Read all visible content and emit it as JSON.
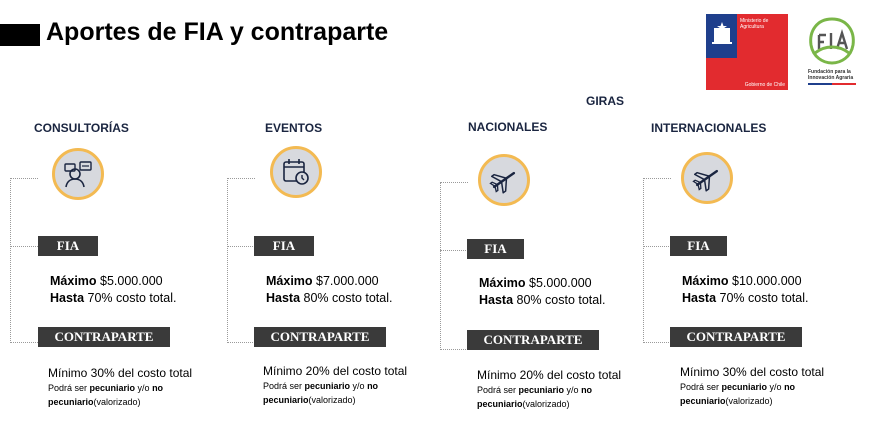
{
  "header": {
    "title": "Aportes de FIA y contraparte"
  },
  "logos": {
    "gobierno": {
      "ministry": "Ministerio de Agricultura",
      "government": "Gobierno de Chile"
    },
    "fia": {
      "name": "Fundación para la Innovación Agraria"
    }
  },
  "giras_label": "GIRAS",
  "common": {
    "fia_label": "FIA",
    "contraparte_label": "CONTRAPARTE",
    "maximo_word": "Máximo",
    "hasta_word": "Hasta",
    "note_prefix": "Podrá ser ",
    "note_pecuniario": "pecuniario",
    "note_middle": " y/o ",
    "note_no": "no",
    "note_pecuniario2": "pecuniario",
    "note_suffix": "(valorizado)"
  },
  "columns": [
    {
      "heading": "CONSULTORÍAS",
      "icon": "consultant-icon",
      "maximo": "$5.000.000",
      "hasta": "70% costo total.",
      "minimo": "Mínimo 30% del costo total"
    },
    {
      "heading": "EVENTOS",
      "icon": "calendar-clock-icon",
      "maximo": "$7.000.000",
      "hasta": "80% costo total.",
      "minimo": "Mínimo 20% del costo total"
    },
    {
      "heading": "NACIONALES",
      "icon": "airplane-icon",
      "maximo": "$5.000.000",
      "hasta": "80% costo total.",
      "minimo": "Mínimo 20% del costo total"
    },
    {
      "heading": "INTERNACIONALES",
      "icon": "airplane-icon",
      "maximo": "$10.000.000",
      "hasta": "70% costo total.",
      "minimo": "Mínimo 30% del costo total"
    }
  ],
  "colors": {
    "label_bg": "#3a3a3a",
    "heading": "#1a2540",
    "icon_ring": "#f3ba52",
    "icon_fill": "#d7d9de",
    "gob_blue": "#1f3f8c",
    "gob_red": "#e22b2f",
    "fia_green": "#7ab648"
  }
}
